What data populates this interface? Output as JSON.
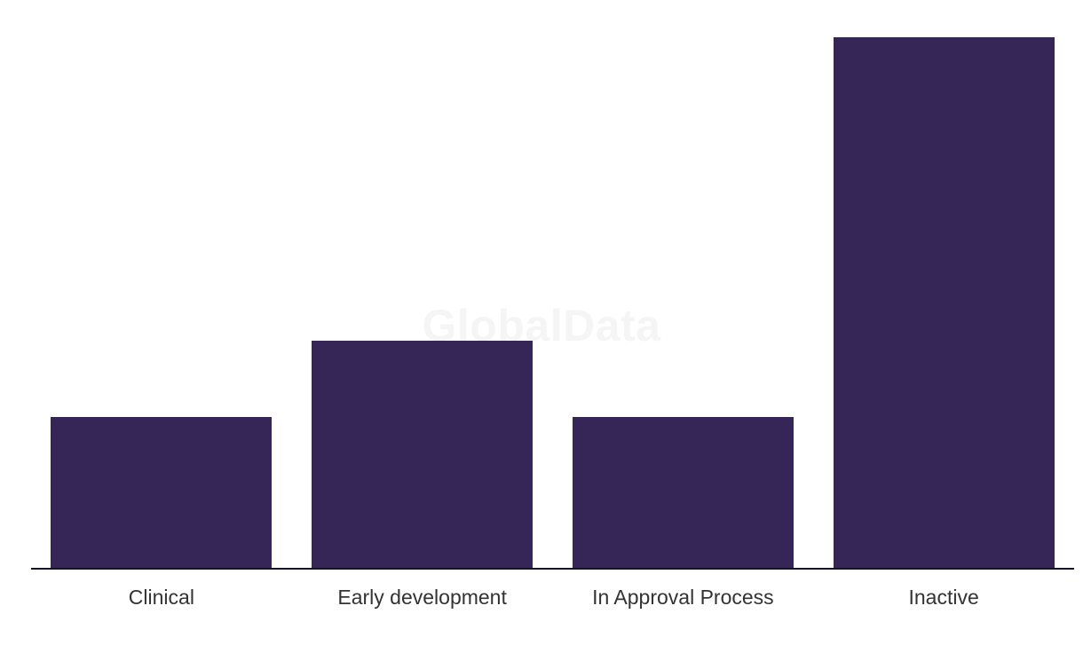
{
  "watermark": {
    "text": "GlobalData",
    "color": "#f5f5f6"
  },
  "chart_data": {
    "type": "bar",
    "categories": [
      "Clinical",
      "Early development",
      "In Approval Process",
      "Inactive"
    ],
    "values": [
      2,
      3,
      2,
      7
    ],
    "ylim": [
      0,
      7
    ],
    "grid": false,
    "legend_position": "none",
    "y_axis_visible": false,
    "x_axis_line_visible": true,
    "bar_color": "#352657",
    "axis_line_color": "#131229",
    "label_color": "#333333"
  }
}
